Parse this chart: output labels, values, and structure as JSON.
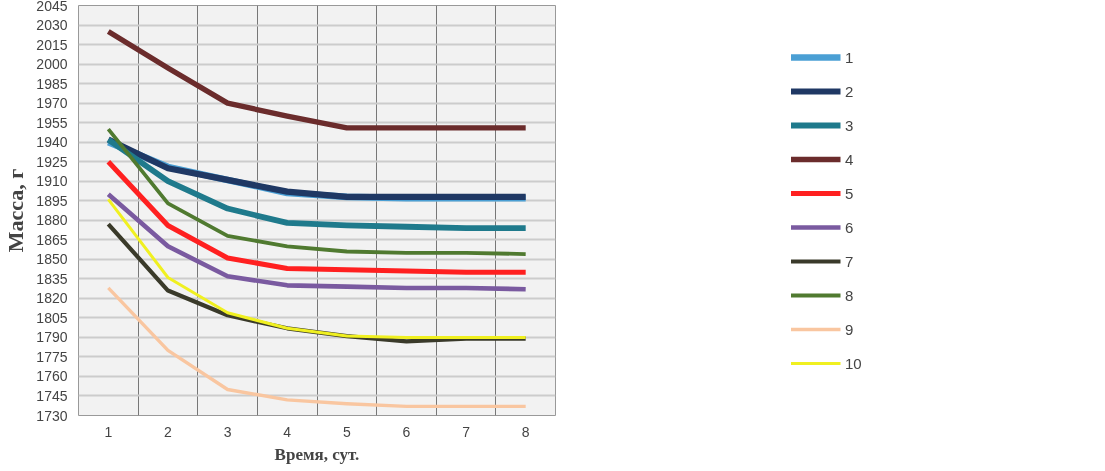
{
  "chart_data": {
    "type": "line",
    "xlabel": "Время, сут.",
    "ylabel": "Масса, г",
    "categories": [
      "1",
      "2",
      "3",
      "4",
      "5",
      "6",
      "7",
      "8"
    ],
    "ylim": [
      1730,
      2045
    ],
    "yticks": [
      1730,
      1745,
      1760,
      1775,
      1790,
      1805,
      1820,
      1835,
      1850,
      1865,
      1880,
      1895,
      1910,
      1925,
      1940,
      1955,
      1970,
      1985,
      2000,
      2015,
      2030,
      2045
    ],
    "grid": true,
    "legend": "right",
    "marker": "none",
    "line_style": "solid",
    "series": [
      {
        "name": "1",
        "color": "#4a9fd4",
        "values": [
          1940,
          1921,
          1911,
          1901,
          1898,
          1897,
          1897,
          1897
        ]
      },
      {
        "name": "2",
        "color": "#1f3864",
        "values": [
          1942,
          1920,
          1911,
          1902,
          1898,
          1898,
          1898,
          1898
        ]
      },
      {
        "name": "3",
        "color": "#1f7a8c",
        "values": [
          1942,
          1910,
          1889,
          1878,
          1876,
          1875,
          1874,
          1874
        ]
      },
      {
        "name": "4",
        "color": "#6b2c2c",
        "values": [
          2025,
          1997,
          1970,
          1960,
          1951,
          1951,
          1951,
          1951
        ]
      },
      {
        "name": "5",
        "color": "#ff2020",
        "values": [
          1925,
          1876,
          1851,
          1843,
          1842,
          1841,
          1840,
          1840
        ]
      },
      {
        "name": "6",
        "color": "#7a5aa0",
        "values": [
          1900,
          1860,
          1837,
          1830,
          1829,
          1828,
          1828,
          1827
        ]
      },
      {
        "name": "7",
        "color": "#3a3a2a",
        "values": [
          1877,
          1826,
          1807,
          1797,
          1791,
          1787,
          1789,
          1789
        ]
      },
      {
        "name": "8",
        "color": "#507a30",
        "values": [
          1950,
          1893,
          1868,
          1860,
          1856,
          1855,
          1855,
          1854
        ]
      },
      {
        "name": "9",
        "color": "#f9c6a0",
        "values": [
          1828,
          1780,
          1750,
          1742,
          1739,
          1737,
          1737,
          1737
        ]
      },
      {
        "name": "10",
        "color": "#f0f020",
        "values": [
          1896,
          1836,
          1809,
          1797,
          1791,
          1790,
          1790,
          1790
        ]
      }
    ]
  }
}
